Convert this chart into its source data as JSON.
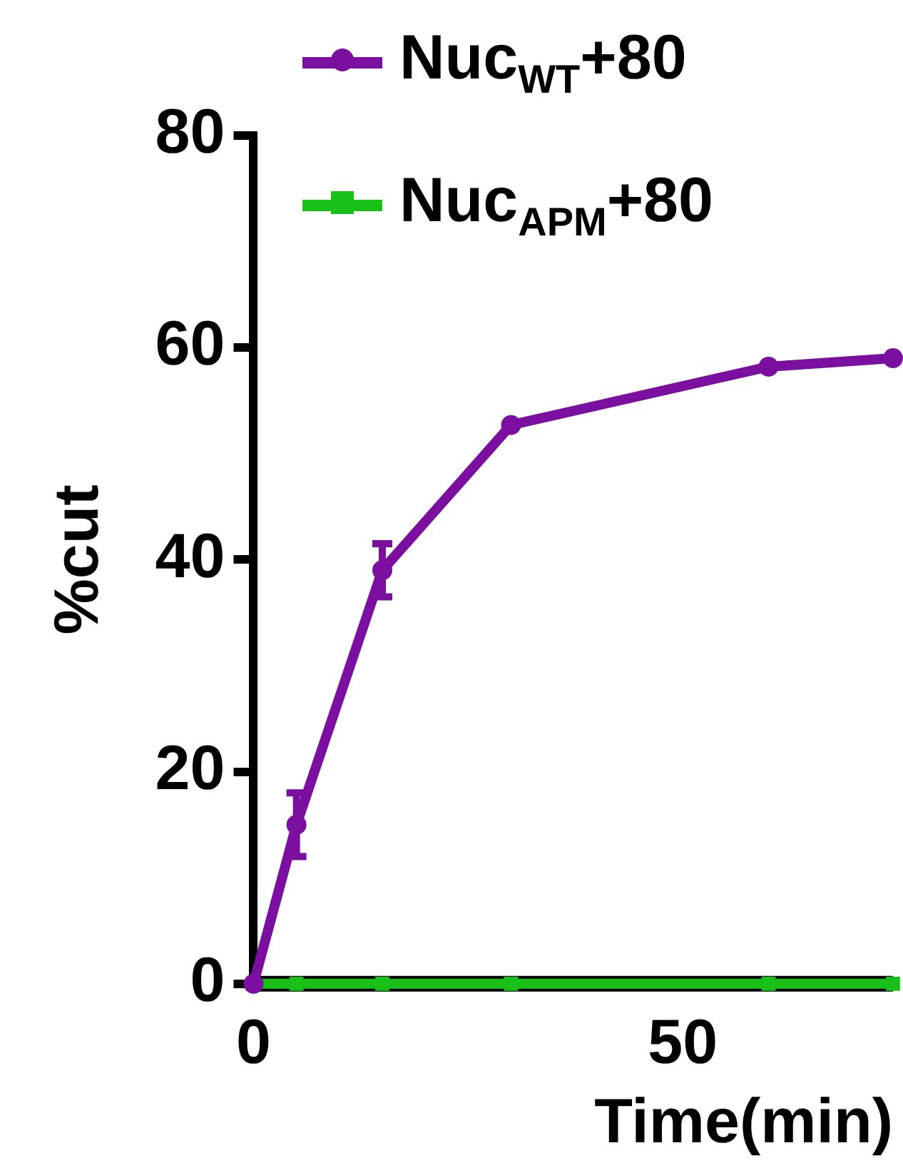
{
  "chart_data": {
    "type": "line",
    "xlabel": "Time(min)",
    "ylabel": "%cut",
    "xlim": [
      0,
      74.5
    ],
    "xticks": [
      0,
      50
    ],
    "ylim": [
      0,
      80
    ],
    "yticks": [
      0,
      20,
      40,
      60,
      80
    ],
    "grid": false,
    "legend": "top",
    "line_style": "solid",
    "series": [
      {
        "name": "Nuc$_{WT}$+80",
        "color": "#7a0fa0",
        "marker": "circle",
        "x": [
          0,
          5,
          15,
          30,
          60,
          74.5
        ],
        "values": [
          0,
          15,
          39,
          52.7,
          58.2,
          59
        ],
        "errors": [
          null,
          3,
          2.5,
          null,
          null,
          null
        ]
      },
      {
        "name": "Nuc$_{APM}$+80",
        "color": "#18c018",
        "marker": "square",
        "x": [
          0,
          5,
          15,
          30,
          60,
          74.5
        ],
        "values": [
          0,
          0,
          0,
          0,
          0,
          0
        ]
      }
    ]
  }
}
